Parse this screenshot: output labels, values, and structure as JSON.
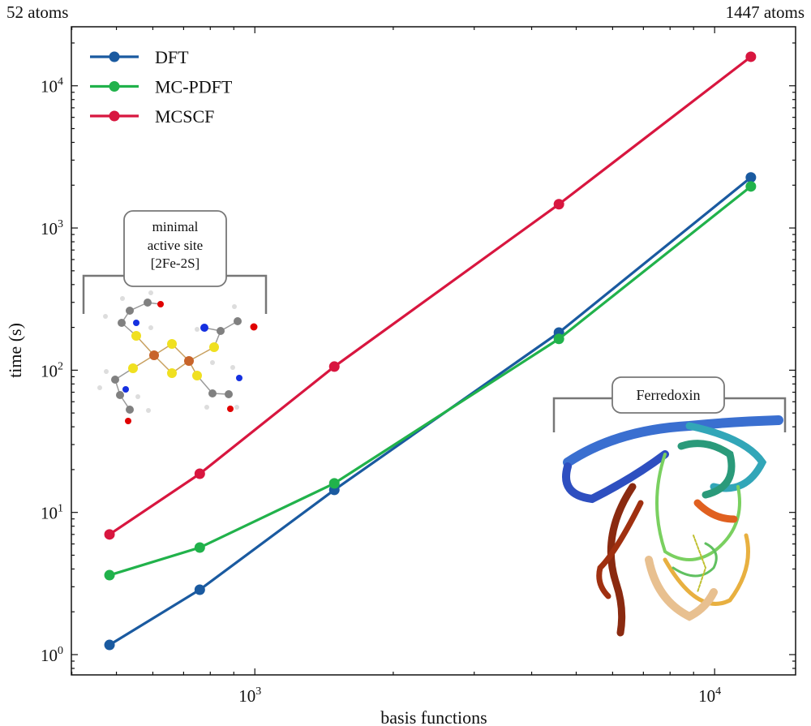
{
  "chart_data": {
    "type": "line",
    "xlabel": "basis functions",
    "ylabel": "time (s)",
    "xscale": "log",
    "yscale": "log",
    "xlim": [
      399,
      15000
    ],
    "ylim": [
      0.72,
      26000
    ],
    "xticks": [
      {
        "value": 1000,
        "base": "10",
        "exp": "3"
      },
      {
        "value": 10000,
        "base": "10",
        "exp": "4"
      }
    ],
    "yticks": [
      {
        "value": 1,
        "base": "10",
        "exp": "0"
      },
      {
        "value": 10,
        "base": "10",
        "exp": "1"
      },
      {
        "value": 100,
        "base": "10",
        "exp": "2"
      },
      {
        "value": 1000,
        "base": "10",
        "exp": "3"
      },
      {
        "value": 10000,
        "base": "10",
        "exp": "4"
      }
    ],
    "top_annotations": {
      "left": "52 atoms",
      "right": "1447 atoms"
    },
    "legend_position": "top-left",
    "x": [
      483,
      759,
      1489,
      4585,
      11990
    ],
    "series": [
      {
        "name": "DFT",
        "color": "#1a5aa0",
        "values": [
          1.17,
          2.86,
          14.4,
          184,
          2266
        ]
      },
      {
        "name": "MC-PDFT",
        "color": "#21b24b",
        "values": [
          3.62,
          5.66,
          16.0,
          166,
          1960
        ]
      },
      {
        "name": "MCSCF",
        "color": "#d8163f",
        "values": [
          7.0,
          18.7,
          106,
          1469,
          16000
        ]
      }
    ],
    "annotations": [
      {
        "id": "active-site",
        "lines": [
          "minimal",
          "active site",
          "[2Fe-2S]"
        ]
      },
      {
        "id": "ferredoxin",
        "lines": [
          "Ferredoxin"
        ]
      }
    ]
  }
}
